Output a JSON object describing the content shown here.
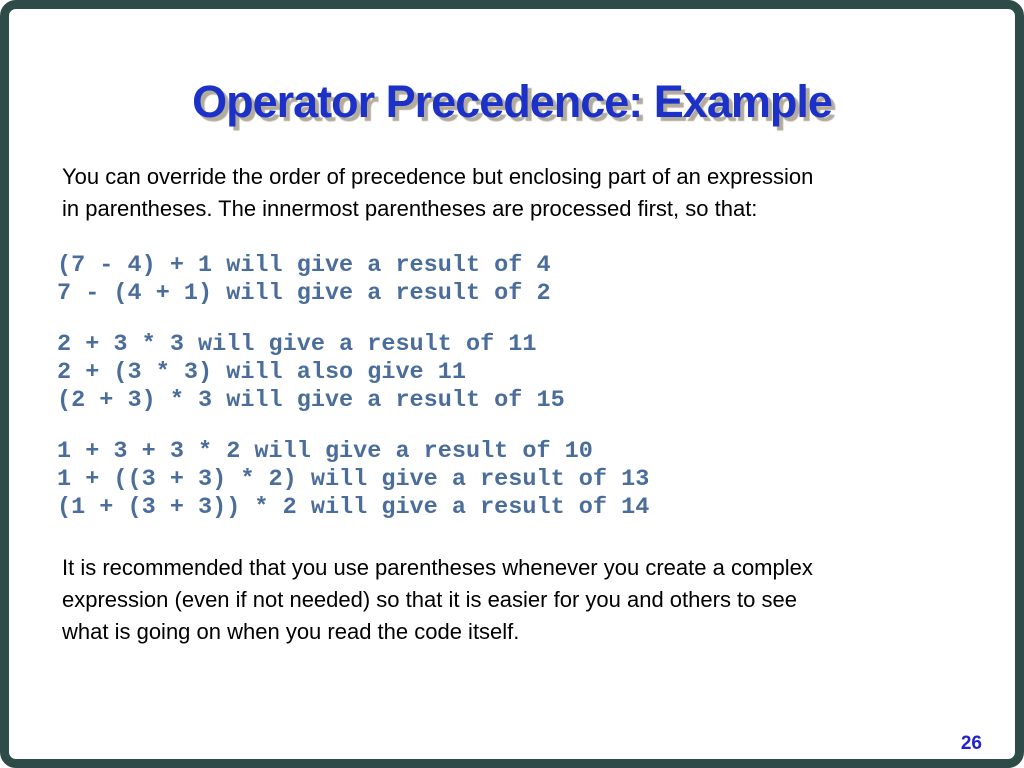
{
  "slide": {
    "title": "Operator Precedence: Example",
    "intro": "You can override the order of precedence but enclosing part of an expression\nin parentheses. The innermost parentheses are processed first, so that:",
    "code_blocks": [
      "(7 - 4) + 1 will give a result of 4\n7 - (4 + 1) will give a result of 2",
      "2 + 3 * 3 will give a result of 11\n2 + (3 * 3) will also give 11\n(2 + 3) * 3 will give a result of 15",
      "1 + 3 + 3 * 2 will give a result of 10\n1 + ((3 + 3) * 2) will give a result of 13\n(1 + (3 + 3)) * 2 will give a result of 14"
    ],
    "closing": "It is recommended that you use parentheses whenever you create a complex\nexpression (even if not needed) so that it is easier for you and others to see\nwhat is going on when you read the code itself.",
    "page_number": "26",
    "colors": {
      "title_blue": "#1b31c8",
      "title_shadow": "#b3ab9c",
      "code_blue": "#4a6d9b",
      "body_text": "#000000",
      "page_number_blue": "#2222cc",
      "frame_teal": "#2e4b49",
      "background": "#ffffff"
    }
  }
}
